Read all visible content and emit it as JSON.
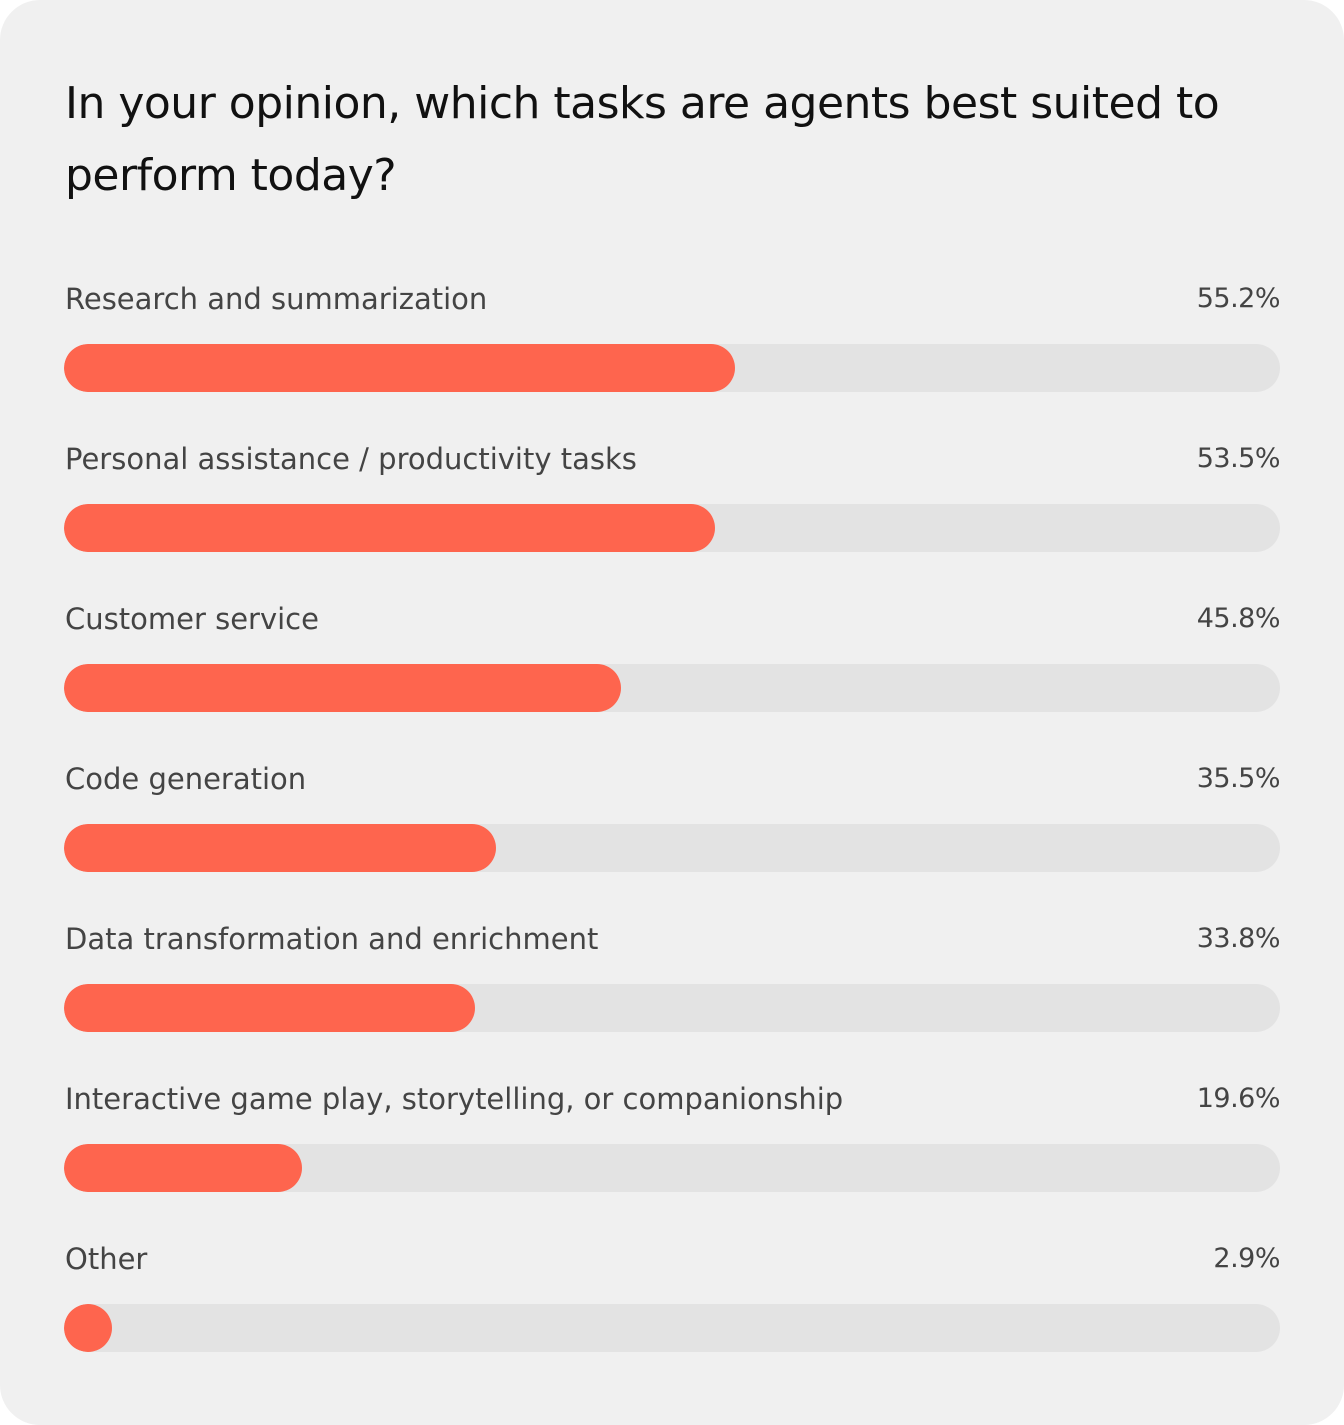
{
  "card": {
    "title": "In your opinion, which tasks are agents best suited to perform today?"
  },
  "colors": {
    "bar_fill": "#fe654e",
    "bar_track": "#e3e3e3",
    "background": "#f0f0f0"
  },
  "chart_data": {
    "type": "bar",
    "orientation": "horizontal",
    "title": "In your opinion, which tasks are agents best suited to perform today?",
    "xlim": [
      0,
      100
    ],
    "grid": false,
    "categories": [
      "Research and summarization",
      "Personal assistance / productivity tasks",
      "Customer service",
      "Code generation",
      "Data transformation and enrichment",
      "Interactive game play, storytelling, or companionship",
      "Other"
    ],
    "values": [
      55.2,
      53.5,
      45.8,
      35.5,
      33.8,
      19.6,
      2.9
    ],
    "value_labels": [
      "55.2%",
      "53.5%",
      "45.8%",
      "35.5%",
      "33.8%",
      "19.6%",
      "2.9%"
    ]
  }
}
